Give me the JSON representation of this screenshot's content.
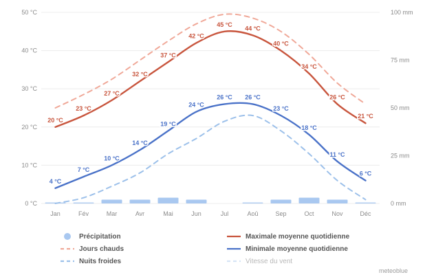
{
  "chart_data": {
    "type": "line",
    "categories": [
      "Jan",
      "Fév",
      "Mar",
      "Avr",
      "Mai",
      "Jun",
      "Jul",
      "Aoû",
      "Sep",
      "Oct",
      "Nov",
      "Déc"
    ],
    "y_left": {
      "ticks": [
        "0 °C",
        "10 °C",
        "20 °C",
        "30 °C",
        "40 °C",
        "50 °C"
      ],
      "range": [
        0,
        50
      ]
    },
    "y_right": {
      "ticks": [
        "0 mm",
        "25 mm",
        "50 mm",
        "75 mm",
        "100 mm"
      ],
      "range": [
        0,
        100
      ]
    },
    "grid": true,
    "series": [
      {
        "name": "Maximale moyenne quotidienne",
        "key": "max",
        "color": "#c8553d",
        "style": "solid",
        "values": [
          20,
          23,
          27,
          32,
          37,
          42,
          45,
          44,
          40,
          34,
          26,
          21
        ],
        "labels": [
          "20 °C",
          "23 °C",
          "27 °C",
          "32 °C",
          "37 °C",
          "42 °C",
          "45 °C",
          "44 °C",
          "40 °C",
          "34 °C",
          "26 °C",
          "21 °C"
        ]
      },
      {
        "name": "Jours chauds",
        "key": "hot",
        "color": "#f0a898",
        "style": "dashed",
        "values": [
          25,
          28.5,
          32.5,
          37.5,
          42.5,
          47,
          49.5,
          48.5,
          45,
          39,
          31.5,
          26
        ]
      },
      {
        "name": "Minimale moyenne quotidienne",
        "key": "min",
        "color": "#4a72c8",
        "style": "solid",
        "values": [
          4,
          7,
          10,
          14,
          19,
          24,
          26,
          26,
          23,
          18,
          11,
          6
        ],
        "labels": [
          "4 °C",
          "7 °C",
          "10 °C",
          "14 °C",
          "19 °C",
          "24 °C",
          "26 °C",
          "26 °C",
          "23 °C",
          "18 °C",
          "11 °C",
          "6 °C"
        ]
      },
      {
        "name": "Nuits froides",
        "key": "cold",
        "color": "#9cc0ea",
        "style": "dashed",
        "values": [
          0,
          1.5,
          4.5,
          8,
          13,
          17,
          21.5,
          23,
          19,
          13,
          6,
          1
        ]
      }
    ],
    "precipitation": {
      "name": "Précipitation",
      "unit": "mm",
      "color": "#a9c8f0",
      "values": [
        0.5,
        0.5,
        2,
        2,
        3,
        2,
        0,
        0.5,
        2,
        3,
        2,
        0.5
      ]
    },
    "legend": {
      "left": [
        "Précipitation",
        "Jours chauds",
        "Nuits froides"
      ],
      "right": [
        "Maximale moyenne quotidienne",
        "Minimale moyenne quotidienne",
        "Vitesse du vent"
      ]
    },
    "legend_placement": "bottom",
    "credit": "meteoblue"
  }
}
